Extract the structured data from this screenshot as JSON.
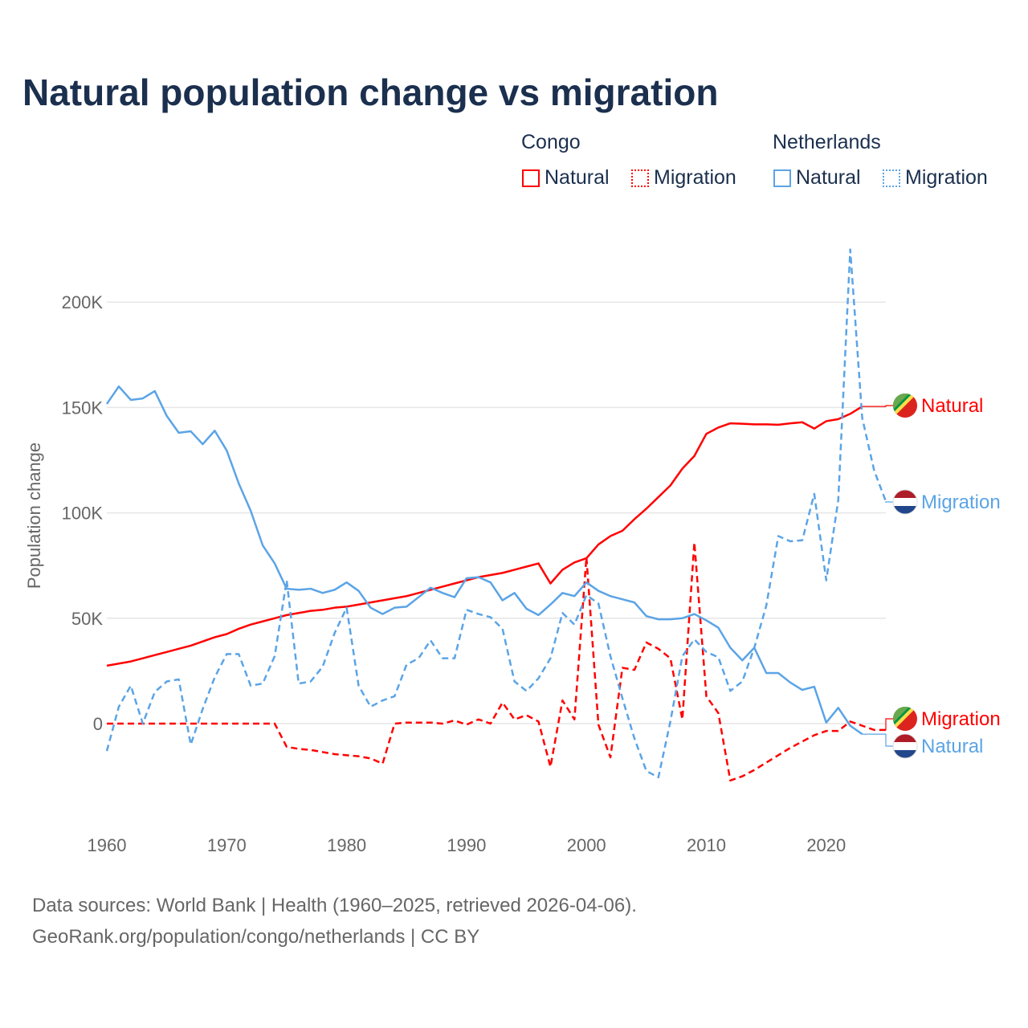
{
  "title": "Natural population change vs migration",
  "legend": {
    "groups": [
      {
        "name": "Congo",
        "items": [
          {
            "label": "Natural",
            "style": "solid",
            "color": "#ff0000"
          },
          {
            "label": "Migration",
            "style": "dotted",
            "color": "#ff0000"
          }
        ]
      },
      {
        "name": "Netherlands",
        "items": [
          {
            "label": "Natural",
            "style": "solid",
            "color": "#5ba4e6"
          },
          {
            "label": "Migration",
            "style": "dotted",
            "color": "#5ba4e6"
          }
        ]
      }
    ]
  },
  "footer": {
    "line1": "Data sources: World Bank | Health (1960–2025, retrieved 2026-04-06).",
    "line2": "GeoRank.org/population/congo/netherlands | CC BY"
  },
  "chart_data": {
    "type": "line",
    "title": "Natural population change vs migration",
    "xlabel": "",
    "ylabel": "Population change",
    "xlim": [
      1960,
      2025
    ],
    "ylim": [
      -40000,
      230000
    ],
    "xticks": [
      1960,
      1970,
      1980,
      1990,
      2000,
      2010,
      2020
    ],
    "yticks": [
      {
        "v": 0,
        "label": "0"
      },
      {
        "v": 50000,
        "label": "50K"
      },
      {
        "v": 100000,
        "label": "100K"
      },
      {
        "v": 150000,
        "label": "150K"
      },
      {
        "v": 200000,
        "label": "200K"
      }
    ],
    "grid": true,
    "series": [
      {
        "name": "Congo Natural",
        "end_label": "Natural",
        "country": "Congo",
        "color": "#ff0000",
        "dash": false,
        "start": 1960,
        "values": [
          27.5,
          28.5,
          29.5,
          31,
          32.5,
          34,
          35.5,
          37,
          39,
          41,
          42.5,
          45,
          47,
          48.5,
          50,
          51.5,
          52.5,
          53.5,
          54,
          55,
          55.5,
          56.5,
          57.5,
          58.5,
          59.5,
          60.5,
          62,
          63.5,
          65,
          66.5,
          68,
          69.5,
          70.5,
          71.5,
          73,
          74.5,
          76,
          66.5,
          73,
          76.5,
          78.5,
          85,
          89,
          91.5,
          97,
          102,
          107.5,
          113,
          121,
          127,
          137.5,
          140.5,
          142.5,
          142.3,
          142,
          142,
          141.8,
          142.5,
          143,
          140,
          143.5,
          144.5,
          147,
          150.5
        ]
      },
      {
        "name": "Congo Migration",
        "end_label": "Migration",
        "country": "Congo",
        "color": "#ff0000",
        "dash": true,
        "start": 1960,
        "values": [
          0,
          0,
          0,
          0,
          0,
          0,
          0,
          0,
          0,
          0,
          0,
          0,
          0,
          0,
          0,
          -11,
          -12,
          -12.5,
          -13.5,
          -14.5,
          -15,
          -15.5,
          -16.5,
          -19,
          0,
          0.5,
          0.5,
          0.5,
          0,
          1.5,
          -0.5,
          2,
          0,
          10,
          2,
          4,
          1,
          -20.5,
          11,
          2,
          79,
          -0.5,
          -16,
          26.5,
          25.5,
          38.5,
          35.5,
          31,
          2,
          86,
          13,
          5,
          -27,
          -25,
          -22,
          -18.5,
          -15,
          -11.5,
          -8.5,
          -5.5,
          -3.5,
          -3.5,
          1,
          -1,
          -3,
          -3
        ]
      },
      {
        "name": "Netherlands Natural",
        "end_label": "Natural",
        "country": "Netherlands",
        "color": "#5ba4e6",
        "dash": false,
        "start": 1960,
        "values": [
          151.7,
          160,
          153.6,
          154.3,
          157.8,
          146,
          138,
          138.7,
          132.6,
          139,
          129.6,
          114,
          101,
          84.6,
          76,
          64,
          63.5,
          64,
          62,
          63.5,
          67,
          63,
          55,
          52,
          55,
          55.5,
          60,
          64.5,
          62,
          60,
          69,
          69.5,
          67,
          58.5,
          62,
          54.5,
          51.5,
          56.5,
          62,
          60.5,
          67,
          63,
          60.5,
          59,
          57.5,
          51,
          49.5,
          49.5,
          50,
          52,
          49,
          45.5,
          36,
          30,
          36,
          24,
          24,
          19.5,
          16,
          17.5,
          0.5,
          7.5,
          -1,
          -5
        ]
      },
      {
        "name": "Netherlands Migration",
        "end_label": "Migration",
        "country": "Netherlands",
        "color": "#5ba4e6",
        "dash": true,
        "start": 1960,
        "values": [
          -13,
          8,
          18,
          0,
          15,
          20,
          21,
          -10,
          7,
          22,
          33,
          33,
          18,
          19,
          32,
          68,
          19,
          20,
          27,
          43,
          55,
          18,
          8,
          11,
          13,
          28,
          31,
          39.5,
          31,
          31,
          54,
          52,
          50.5,
          45,
          20,
          15.5,
          21.5,
          31,
          52.5,
          47,
          61,
          57,
          32,
          12,
          -7,
          -22.5,
          -25.5,
          1,
          32,
          40,
          34,
          31.5,
          15.5,
          20,
          36,
          56,
          89,
          86.5,
          87,
          109,
          68,
          106,
          225,
          145,
          120,
          105
        ]
      }
    ]
  }
}
